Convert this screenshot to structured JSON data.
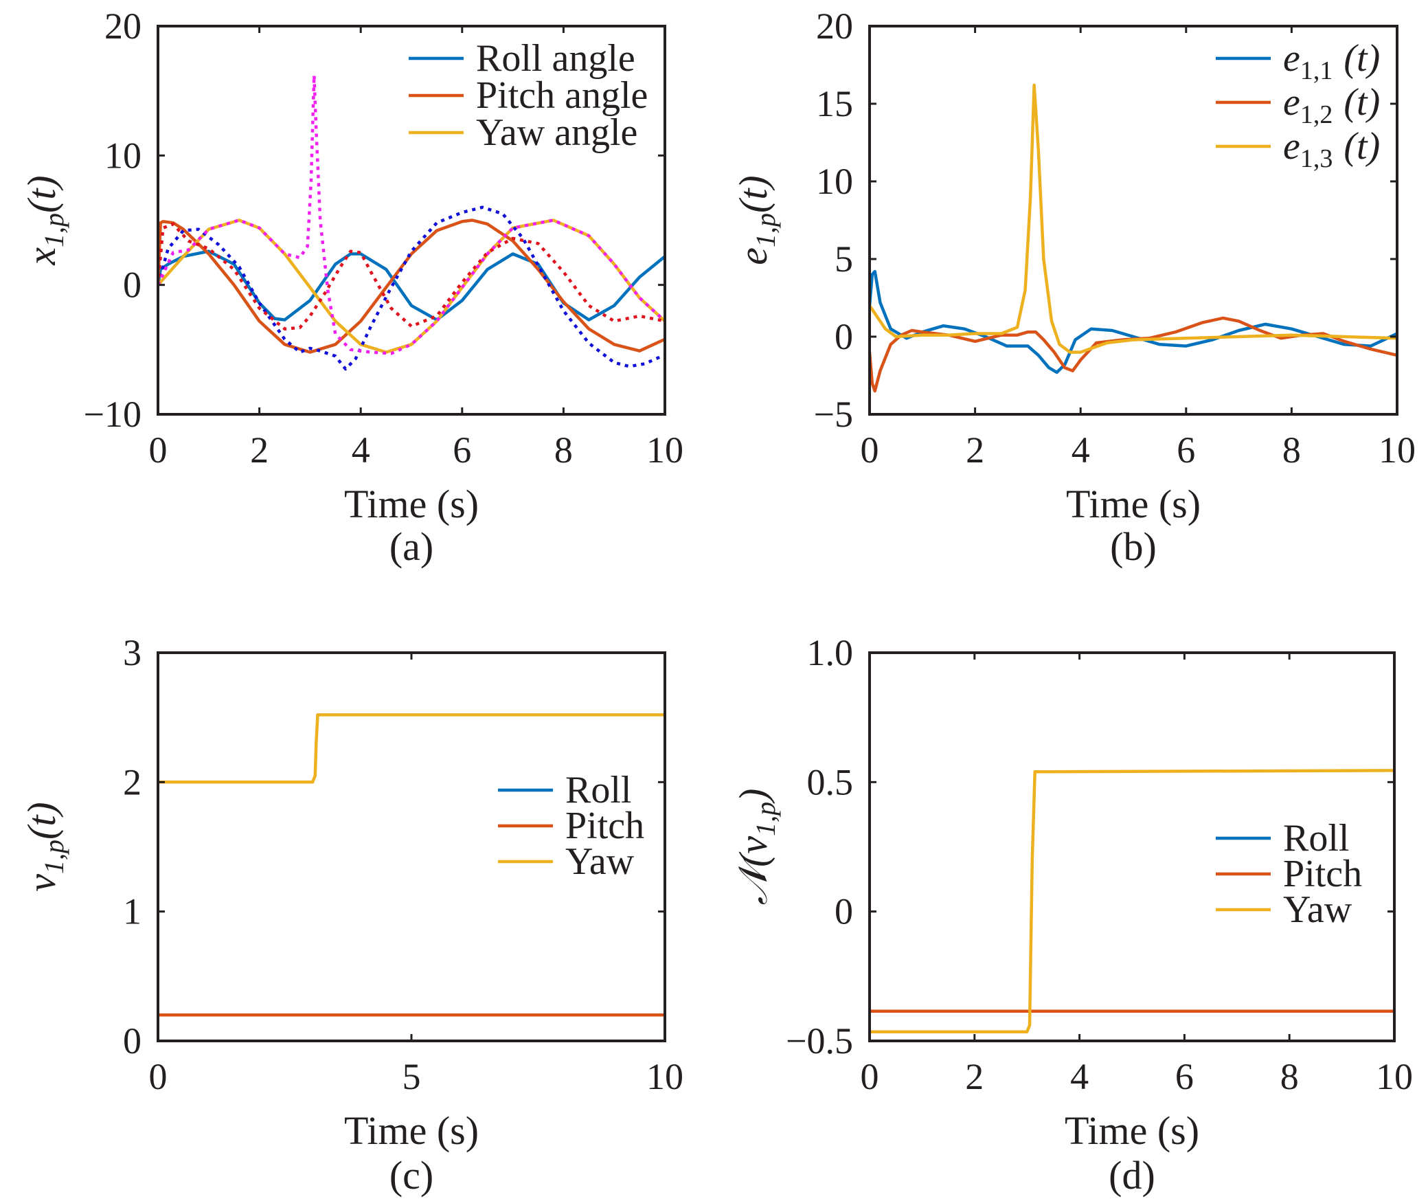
{
  "colors": {
    "blue": "#0072BD",
    "orange": "#D95319",
    "yellow": "#EDB120",
    "ref_blue": "#1010D8",
    "ref_red": "#E0141E",
    "ref_magenta": "#F020F0",
    "axis": "#231f20"
  },
  "chart_data": [
    {
      "id": "a",
      "type": "line",
      "caption": "(a)",
      "xlabel": "Time (s)",
      "ylabel": "x",
      "ylabel_sub": "1,p",
      "ylabel_arg": "(t)",
      "xlim": [
        0,
        10
      ],
      "ylim": [
        -10,
        20
      ],
      "xticks": [
        0,
        2,
        4,
        6,
        8,
        10
      ],
      "yticks": [
        -10,
        0,
        10,
        20
      ],
      "ytick_labels": [
        "−10",
        "0",
        "10",
        "20"
      ],
      "legend_position": "top-right",
      "legend": [
        {
          "label": "Roll angle",
          "color": "#0072BD"
        },
        {
          "label": "Pitch angle",
          "color": "#D95319"
        },
        {
          "label": "Yaw angle",
          "color": "#EDB120"
        }
      ],
      "series": [
        {
          "name": "Roll angle",
          "color": "#0072BD",
          "style": "solid",
          "x": [
            0,
            0.05,
            0.2,
            0.5,
            1,
            1.5,
            2,
            2.3,
            2.5,
            3,
            3.5,
            3.8,
            4,
            4.5,
            5,
            5.5,
            6,
            6.5,
            7,
            7.5,
            8,
            8.5,
            9,
            9.5,
            10
          ],
          "y": [
            0,
            1.2,
            1.6,
            2.2,
            2.6,
            1.6,
            -1.4,
            -2.6,
            -2.7,
            -1.2,
            1.6,
            2.4,
            2.4,
            1.2,
            -1.6,
            -2.7,
            -1.2,
            1.2,
            2.4,
            1.6,
            -1.4,
            -2.7,
            -1.6,
            0.6,
            2.2
          ]
        },
        {
          "name": "Pitch angle",
          "color": "#D95319",
          "style": "solid",
          "x": [
            0,
            0.05,
            0.1,
            0.3,
            0.5,
            1,
            1.5,
            2,
            2.5,
            3,
            3.5,
            4,
            4.5,
            5,
            5.5,
            6,
            6.2,
            6.5,
            7,
            7.5,
            8,
            8.5,
            9,
            9.5,
            10
          ],
          "y": [
            0,
            4.8,
            4.9,
            4.8,
            4.3,
            2.4,
            0,
            -2.8,
            -4.6,
            -5.2,
            -4.6,
            -2.8,
            -0.2,
            2.4,
            4.2,
            4.9,
            5,
            4.7,
            3.4,
            1.2,
            -1.3,
            -3.4,
            -4.6,
            -5.1,
            -4.2
          ]
        },
        {
          "name": "Yaw angle",
          "color": "#EDB120",
          "style": "solid",
          "x": [
            0,
            0.5,
            1,
            1.6,
            2,
            2.5,
            3,
            3.5,
            4,
            4.5,
            5,
            5.5,
            6,
            6.5,
            7,
            7.8,
            8.5,
            9,
            9.5,
            10
          ],
          "y": [
            0,
            2.2,
            4.3,
            5,
            4.4,
            2.4,
            -0.2,
            -2.8,
            -4.6,
            -5.2,
            -4.6,
            -2.8,
            -0.2,
            2.4,
            4.4,
            5,
            3.8,
            1.6,
            -1,
            -2.8
          ]
        },
        {
          "x": [
            0,
            0.2,
            0.5,
            0.8,
            1.2,
            1.6,
            2,
            2.5,
            2.8,
            3,
            3.2,
            3.5,
            3.7,
            3.9,
            4.2,
            4.6,
            5,
            5.5,
            6,
            6.4,
            6.8,
            7.2,
            7.6,
            8,
            8.5,
            9,
            9.3,
            9.6,
            10
          ],
          "y": [
            0,
            2.8,
            4.2,
            4.3,
            3.1,
            1.4,
            -1.4,
            -4.2,
            -5.2,
            -4.9,
            -5.1,
            -5.5,
            -6.5,
            -5.7,
            -3.2,
            -0.2,
            2.6,
            4.8,
            5.6,
            6,
            5.5,
            3.6,
            0.8,
            -2,
            -4.5,
            -6,
            -6.3,
            -6.1,
            -5.4
          ],
          "color": "#1010D8",
          "style": "dotted"
        },
        {
          "x": [
            0,
            0.1,
            0.3,
            0.6,
            1,
            1.5,
            2,
            2.5,
            2.8,
            3,
            3.3,
            3.6,
            3.8,
            4,
            4.2,
            4.6,
            5,
            5.5,
            6,
            6.5,
            7,
            7.5,
            8,
            8.5,
            9,
            9.5,
            10
          ],
          "y": [
            0,
            4.4,
            4.7,
            3.4,
            2.8,
            1.2,
            -1.8,
            -3.4,
            -3.3,
            -2.4,
            -0.6,
            1.4,
            2.6,
            2.5,
            1,
            -1.8,
            -3.2,
            -2.4,
            0.2,
            2.5,
            3.6,
            3.2,
            1,
            -1.6,
            -2.8,
            -2.4,
            -2.8
          ],
          "color": "#E0141E",
          "style": "dotted"
        },
        {
          "x": [
            0,
            0.3,
            0.6,
            1,
            1.6,
            2,
            2.5,
            2.8,
            2.95,
            3.02,
            3.08,
            3.12,
            3.2,
            3.35,
            3.5,
            3.8,
            4.2,
            4.6,
            5,
            5.5,
            6,
            6.5,
            7,
            7.8,
            8.5,
            9,
            9.5,
            10
          ],
          "y": [
            0,
            2.5,
            2.7,
            4.3,
            5,
            4.4,
            2.4,
            2.1,
            3,
            8,
            16.2,
            12,
            5,
            -0.4,
            -3.8,
            -5,
            -5.2,
            -5.3,
            -4.6,
            -2.8,
            -0.2,
            2.4,
            4.4,
            5,
            3.8,
            1.6,
            -1,
            -2.8
          ],
          "color": "#F020F0",
          "style": "dotted"
        }
      ]
    },
    {
      "id": "b",
      "type": "line",
      "caption": "(b)",
      "xlabel": "Time (s)",
      "ylabel": "e",
      "ylabel_sub": "1,p",
      "ylabel_arg": "(t)",
      "xlim": [
        0,
        10
      ],
      "ylim": [
        -5,
        20
      ],
      "xticks": [
        0,
        2,
        4,
        6,
        8,
        10
      ],
      "yticks": [
        -5,
        0,
        5,
        10,
        15,
        20
      ],
      "ytick_labels": [
        "−5",
        "0",
        "5",
        "10",
        "15",
        "20"
      ],
      "legend_position": "top-right",
      "legend": [
        {
          "label": "e",
          "sub": "1,1",
          "arg": "(t)",
          "color": "#0072BD"
        },
        {
          "label": "e",
          "sub": "1,2",
          "arg": "(t)",
          "color": "#D95319"
        },
        {
          "label": "e",
          "sub": "1,3",
          "arg": "(t)",
          "color": "#EDB120"
        }
      ],
      "series": [
        {
          "name": "e1,1 (t)",
          "color": "#0072BD",
          "style": "solid",
          "x": [
            0,
            0.05,
            0.1,
            0.2,
            0.4,
            0.7,
            1,
            1.4,
            1.8,
            2.2,
            2.6,
            3,
            3.2,
            3.4,
            3.55,
            3.7,
            3.9,
            4.2,
            4.6,
            5,
            5.5,
            6,
            6.5,
            7,
            7.5,
            8,
            8.5,
            9,
            9.5,
            10
          ],
          "y": [
            2,
            4,
            4.2,
            2.2,
            0.5,
            -0.1,
            0.3,
            0.7,
            0.5,
            0,
            -0.6,
            -0.6,
            -1.2,
            -2,
            -2.3,
            -1.8,
            -0.2,
            0.5,
            0.4,
            0,
            -0.5,
            -0.6,
            -0.2,
            0.4,
            0.8,
            0.5,
            0,
            -0.5,
            -0.6,
            0.2
          ]
        },
        {
          "name": "e1,2 (t)",
          "color": "#D95319",
          "style": "solid",
          "x": [
            0,
            0.05,
            0.1,
            0.2,
            0.4,
            0.6,
            0.8,
            1,
            1.5,
            2,
            2.5,
            2.8,
            3,
            3.15,
            3.3,
            3.5,
            3.7,
            3.85,
            4,
            4.3,
            4.8,
            5.3,
            5.8,
            6.3,
            6.7,
            7,
            7.4,
            7.8,
            8.2,
            8.6,
            9,
            9.5,
            10
          ],
          "y": [
            -1,
            -3,
            -3.5,
            -2.2,
            -0.5,
            0.1,
            0.4,
            0.3,
            0.1,
            -0.3,
            0.1,
            0.1,
            0.3,
            0.3,
            -0.2,
            -1,
            -2,
            -2.2,
            -1.5,
            -0.4,
            -0.2,
            -0.1,
            0.3,
            0.9,
            1.2,
            1,
            0.4,
            -0.1,
            0.1,
            0.2,
            -0.3,
            -0.8,
            -1.2
          ]
        },
        {
          "name": "e1,3 (t)",
          "color": "#EDB120",
          "style": "solid",
          "x": [
            0,
            0.1,
            0.3,
            0.5,
            1,
            1.5,
            2,
            2.5,
            2.8,
            2.95,
            3.05,
            3.12,
            3.2,
            3.3,
            3.45,
            3.6,
            3.8,
            4,
            4.5,
            5,
            6,
            7,
            8,
            9,
            10
          ],
          "y": [
            2,
            1.5,
            0.5,
            0,
            0.1,
            0.1,
            0.2,
            0.2,
            0.6,
            3,
            9,
            16.2,
            12,
            5,
            1,
            -0.5,
            -1,
            -1,
            -0.4,
            -0.2,
            -0.1,
            0,
            0.1,
            0,
            -0.1
          ]
        }
      ]
    },
    {
      "id": "c",
      "type": "line",
      "caption": "(c)",
      "xlabel": "Time (s)",
      "ylabel": "v",
      "ylabel_sub": "1,p",
      "ylabel_arg": "(t)",
      "xlim": [
        0,
        10
      ],
      "ylim": [
        0,
        3
      ],
      "xticks": [
        0,
        5,
        10
      ],
      "yticks": [
        0,
        1,
        2,
        3
      ],
      "ytick_labels": [
        "0",
        "1",
        "2",
        "3"
      ],
      "legend_position": "middle-right",
      "legend": [
        {
          "label": "Roll",
          "color": "#0072BD"
        },
        {
          "label": "Pitch",
          "color": "#D95319"
        },
        {
          "label": "Yaw",
          "color": "#EDB120"
        }
      ],
      "series": [
        {
          "name": "Roll",
          "color": "#0072BD",
          "style": "solid",
          "x": [
            0,
            10
          ],
          "y": [
            0.2,
            0.2
          ]
        },
        {
          "name": "Pitch",
          "color": "#D95319",
          "style": "solid",
          "x": [
            0,
            10
          ],
          "y": [
            0.2,
            0.2
          ]
        },
        {
          "name": "Yaw",
          "color": "#EDB120",
          "style": "solid",
          "x": [
            0,
            3.05,
            3.1,
            3.12,
            3.15,
            10
          ],
          "y": [
            2,
            2,
            2.05,
            2.3,
            2.52,
            2.52
          ]
        }
      ]
    },
    {
      "id": "d",
      "type": "line",
      "caption": "(d)",
      "xlabel": "Time (s)",
      "ylabel": "𝒩(v",
      "ylabel_sub": "1,p",
      "ylabel_arg": ")",
      "xlim": [
        0,
        10
      ],
      "ylim": [
        -0.5,
        1
      ],
      "xticks": [
        0,
        2,
        4,
        6,
        8,
        10
      ],
      "yticks": [
        -0.5,
        0,
        0.5,
        1
      ],
      "ytick_labels": [
        "−0.5",
        "0",
        "0.5",
        "1.0"
      ],
      "legend_position": "middle-right",
      "legend": [
        {
          "label": "Roll",
          "color": "#0072BD"
        },
        {
          "label": "Pitch",
          "color": "#D95319"
        },
        {
          "label": "Yaw",
          "color": "#EDB120"
        }
      ],
      "series": [
        {
          "name": "Roll",
          "color": "#0072BD",
          "style": "solid",
          "x": [
            0,
            10
          ],
          "y": [
            -0.385,
            -0.385
          ]
        },
        {
          "name": "Pitch",
          "color": "#D95319",
          "style": "solid",
          "x": [
            0,
            10
          ],
          "y": [
            -0.385,
            -0.385
          ]
        },
        {
          "name": "Yaw",
          "color": "#EDB120",
          "style": "solid",
          "x": [
            0,
            3,
            3.05,
            3.1,
            3.15,
            10
          ],
          "y": [
            -0.465,
            -0.465,
            -0.44,
            0.2,
            0.54,
            0.545
          ]
        }
      ]
    }
  ]
}
